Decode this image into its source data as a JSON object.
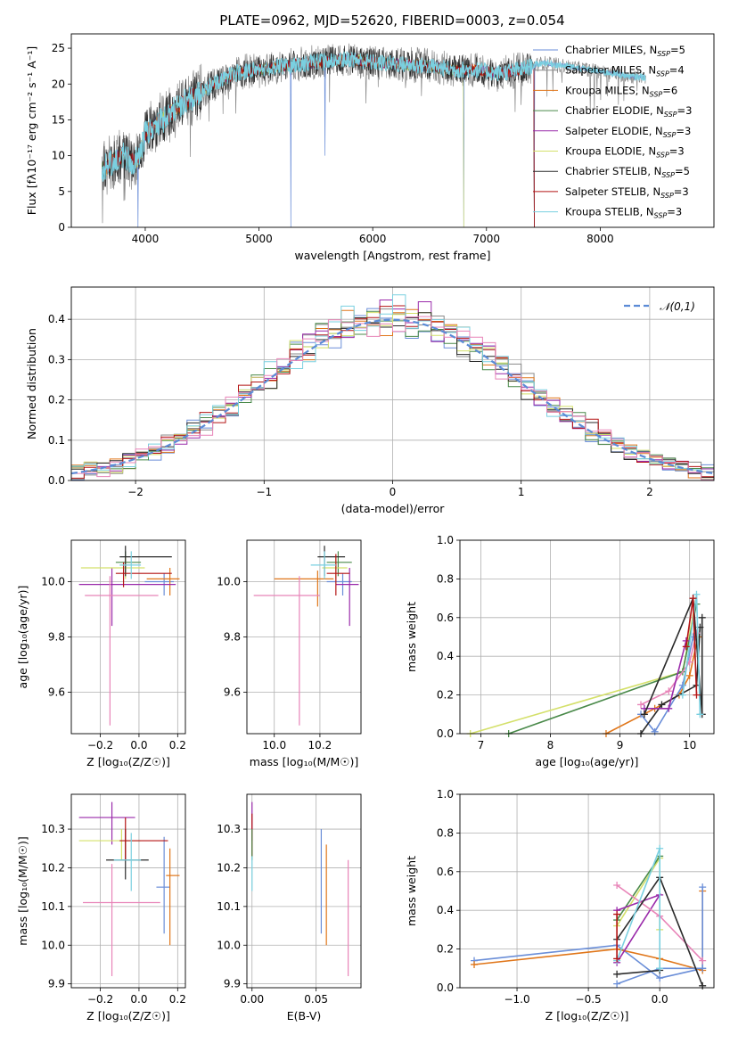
{
  "title": "PLATE=0962, MJD=52620, FIBERID=0003, z=0.054",
  "colors": {
    "Chabrier MILES": "#6a8ed8",
    "Salpeter MILES": "#8a8a8a",
    "Kroupa MILES": "#e0761a",
    "Chabrier ELODIE": "#4a8a4a",
    "Salpeter ELODIE": "#9a2aaa",
    "Kroupa ELODIE": "#d4e06a",
    "Chabrier STELIB": "#2a2a2a",
    "Salpeter STELIB": "#b41414",
    "Kroupa STELIB": "#7ad0e0",
    "extra_pink": "#e884b8",
    "gaussian": "#5b8bd6",
    "grid": "#b0b0b0"
  },
  "chart_data": [
    {
      "id": "spectrum",
      "type": "line",
      "title": "PLATE=0962, MJD=52620, FIBERID=0003, z=0.054",
      "xlabel": "wavelength [Angstrom, rest frame]",
      "ylabel": "Flux [fλ10⁻¹⁷ erg cm⁻² s⁻¹ A⁻¹]",
      "xlim": [
        3350,
        9000
      ],
      "ylim": [
        0,
        27
      ],
      "xticks": [
        "4000",
        "5000",
        "6000",
        "7000",
        "8000"
      ],
      "yticks": [
        "0",
        "5",
        "10",
        "15",
        "20",
        "25"
      ],
      "grid": false,
      "legend_position": "right",
      "legend": [
        "Chabrier MILES, N_SSP=5",
        "Salpeter MILES, N_SSP=4",
        "Kroupa MILES, N_SSP=6",
        "Chabrier ELODIE, N_SSP=3",
        "Salpeter ELODIE, N_SSP=3",
        "Kroupa ELODIE, N_SSP=3",
        "Chabrier STELIB, N_SSP=5",
        "Salpeter STELIB, N_SSP=3",
        "Kroupa STELIB, N_SSP=3"
      ],
      "continuum": [
        [
          3620,
          8
        ],
        [
          3700,
          9
        ],
        [
          3800,
          10
        ],
        [
          3900,
          9
        ],
        [
          3950,
          10
        ],
        [
          4000,
          13
        ],
        [
          4100,
          14.5
        ],
        [
          4200,
          15.5
        ],
        [
          4300,
          17
        ],
        [
          4400,
          18
        ],
        [
          4600,
          20
        ],
        [
          4800,
          21.5
        ],
        [
          5000,
          22
        ],
        [
          5200,
          22.5
        ],
        [
          5500,
          23
        ],
        [
          5800,
          23.5
        ],
        [
          6000,
          23
        ],
        [
          6200,
          22.8
        ],
        [
          6500,
          22.5
        ],
        [
          6700,
          22
        ],
        [
          6900,
          22
        ],
        [
          7100,
          21.5
        ],
        [
          7300,
          22
        ],
        [
          7400,
          22.5
        ],
        [
          7500,
          23
        ],
        [
          7700,
          22.5
        ],
        [
          7900,
          22
        ],
        [
          8100,
          21.5
        ],
        [
          8300,
          21
        ],
        [
          8400,
          21
        ]
      ],
      "dips": [
        [
          3935,
          0
        ],
        [
          5280,
          0
        ],
        [
          5580,
          10
        ],
        [
          6800,
          0
        ],
        [
          7420,
          0
        ]
      ]
    },
    {
      "id": "residuals",
      "type": "histogram",
      "xlabel": "(data-model)/error",
      "ylabel": "Normed distribution",
      "xlim": [
        -2.5,
        2.5
      ],
      "ylim": [
        0,
        0.48
      ],
      "xticks": [
        "−2",
        "−1",
        "0",
        "1",
        "2"
      ],
      "yticks": [
        "0.0",
        "0.1",
        "0.2",
        "0.3",
        "0.4"
      ],
      "grid": true,
      "legend": [
        "𝒩(0,1)"
      ],
      "legend_position": "top-right",
      "bin_width": 0.1
    },
    {
      "id": "age_vs_Z",
      "type": "errorbar",
      "xlabel": "Z [log₁₀(Z/Z☉)]",
      "ylabel": "age  [log₁₀(age/yr)]",
      "xlim": [
        -0.35,
        0.24
      ],
      "ylim": [
        9.45,
        10.15
      ],
      "xticks": [
        "−0.2",
        "0.0",
        "0.2"
      ],
      "yticks": [
        "9.6",
        "9.8",
        "10.0"
      ],
      "points": [
        {
          "c": "Chabrier MILES",
          "x": 0.13,
          "xlo": 0.1,
          "xhi": 0.05,
          "y": 10.0,
          "ylo": 0.05,
          "yhi": 0.03
        },
        {
          "c": "Kroupa MILES",
          "x": 0.16,
          "xlo": 0.12,
          "xhi": 0.05,
          "y": 10.01,
          "ylo": 0.06,
          "yhi": 0.04
        },
        {
          "c": "Chabrier ELODIE",
          "x": -0.07,
          "xlo": 0.05,
          "xhi": 0.08,
          "y": 10.07,
          "ylo": 0.05,
          "yhi": 0.04
        },
        {
          "c": "Salpeter ELODIE",
          "x": -0.14,
          "xlo": 0.17,
          "xhi": 0.33,
          "y": 9.99,
          "ylo": 0.15,
          "yhi": 0.06
        },
        {
          "c": "Kroupa ELODIE",
          "x": -0.07,
          "xlo": 0.23,
          "xhi": 0.1,
          "y": 10.05,
          "ylo": 0.04,
          "yhi": 0.04
        },
        {
          "c": "Chabrier STELIB",
          "x": -0.07,
          "xlo": 0.03,
          "xhi": 0.24,
          "y": 10.09,
          "ylo": 0.07,
          "yhi": 0.04
        },
        {
          "c": "Salpeter STELIB",
          "x": -0.08,
          "xlo": 0.04,
          "xhi": 0.25,
          "y": 10.03,
          "ylo": 0.05,
          "yhi": 0.04
        },
        {
          "c": "Kroupa STELIB",
          "x": -0.04,
          "xlo": 0.06,
          "xhi": 0.05,
          "y": 10.06,
          "ylo": 0.05,
          "yhi": 0.05
        },
        {
          "c": "extra_pink",
          "x": -0.15,
          "xlo": 0.13,
          "xhi": 0.25,
          "y": 9.95,
          "ylo": 0.47,
          "yhi": 0.07
        }
      ]
    },
    {
      "id": "age_vs_mass",
      "type": "errorbar",
      "xlabel": "mass [log₁₀(M/M☉)]",
      "ylabel": "",
      "xlim": [
        9.88,
        10.38
      ],
      "ylim": [
        9.45,
        10.15
      ],
      "xticks": [
        "10.0",
        "10.2"
      ],
      "yticks": [
        "9.6",
        "9.8",
        "10.0"
      ],
      "points": [
        {
          "c": "Chabrier MILES",
          "x": 10.3,
          "xlo": 0.07,
          "xhi": 0.04,
          "y": 10.0,
          "ylo": 0.05,
          "yhi": 0.03
        },
        {
          "c": "Kroupa MILES",
          "x": 10.19,
          "xlo": 0.19,
          "xhi": 0.07,
          "y": 10.01,
          "ylo": 0.1,
          "yhi": 0.03
        },
        {
          "c": "Chabrier ELODIE",
          "x": 10.28,
          "xlo": 0.05,
          "xhi": 0.06,
          "y": 10.07,
          "ylo": 0.05,
          "yhi": 0.04
        },
        {
          "c": "Salpeter ELODIE",
          "x": 10.33,
          "xlo": 0.06,
          "xhi": 0.04,
          "y": 9.99,
          "ylo": 0.15,
          "yhi": 0.06
        },
        {
          "c": "Kroupa ELODIE",
          "x": 10.27,
          "xlo": 0.06,
          "xhi": 0.05,
          "y": 10.05,
          "ylo": 0.04,
          "yhi": 0.04
        },
        {
          "c": "Chabrier STELIB",
          "x": 10.22,
          "xlo": 0.03,
          "xhi": 0.09,
          "y": 10.09,
          "ylo": 0.07,
          "yhi": 0.04
        },
        {
          "c": "Salpeter STELIB",
          "x": 10.27,
          "xlo": 0.04,
          "xhi": 0.06,
          "y": 10.03,
          "ylo": 0.08,
          "yhi": 0.07
        },
        {
          "c": "Kroupa STELIB",
          "x": 10.22,
          "xlo": 0.06,
          "xhi": 0.05,
          "y": 10.06,
          "ylo": 0.05,
          "yhi": 0.05
        },
        {
          "c": "extra_pink",
          "x": 10.11,
          "xlo": 0.2,
          "xhi": 0.09,
          "y": 9.95,
          "ylo": 0.47,
          "yhi": 0.07
        }
      ]
    },
    {
      "id": "weight_vs_age",
      "type": "line",
      "xlabel": "age  [log₁₀(age/yr)]",
      "ylabel": "mass weight",
      "xlim": [
        6.7,
        10.35
      ],
      "ylim": [
        0,
        1.0
      ],
      "xticks": [
        "7",
        "8",
        "9",
        "10"
      ],
      "yticks": [
        "0.0",
        "0.2",
        "0.4",
        "0.6",
        "0.8",
        "1.0"
      ],
      "grid": true,
      "series": [
        {
          "c": "Kroupa ELODIE",
          "x": [
            6.85,
            9.9,
            10.08
          ],
          "y": [
            0.0,
            0.32,
            0.67
          ]
        },
        {
          "c": "Chabrier ELODIE",
          "x": [
            7.4,
            9.9,
            10.1
          ],
          "y": [
            0.0,
            0.32,
            0.67
          ]
        },
        {
          "c": "Kroupa MILES",
          "x": [
            8.8,
            9.5,
            9.85,
            10.0,
            10.12
          ],
          "y": [
            0.0,
            0.13,
            0.2,
            0.3,
            0.5
          ]
        },
        {
          "c": "Chabrier MILES",
          "x": [
            9.3,
            9.5,
            9.9,
            10.05
          ],
          "y": [
            0.1,
            0.01,
            0.25,
            0.5
          ]
        },
        {
          "c": "Chabrier STELIB",
          "x": [
            9.3,
            9.6,
            10.1,
            10.15
          ],
          "y": [
            0.0,
            0.15,
            0.25,
            0.55
          ]
        },
        {
          "c": "extra_pink",
          "x": [
            9.3,
            9.7,
            10.0,
            10.1
          ],
          "y": [
            0.15,
            0.22,
            0.37,
            0.52
          ]
        },
        {
          "c": "Salpeter ELODIE",
          "x": [
            9.35,
            9.7,
            9.95
          ],
          "y": [
            0.13,
            0.13,
            0.48
          ]
        },
        {
          "c": "Chabrier STELIB",
          "x": [
            9.35,
            10.05,
            10.18,
            10.18
          ],
          "y": [
            0.1,
            0.7,
            0.1,
            0.6
          ]
        },
        {
          "c": "Kroupa STELIB",
          "x": [
            9.9,
            10.1,
            10.15
          ],
          "y": [
            0.2,
            0.72,
            0.1
          ]
        },
        {
          "c": "Salpeter STELIB",
          "x": [
            9.95,
            10.05,
            10.1
          ],
          "y": [
            0.45,
            0.7,
            0.2
          ]
        }
      ]
    },
    {
      "id": "mass_vs_Z",
      "type": "errorbar",
      "xlabel": "Z [log₁₀(Z/Z☉)]",
      "ylabel": "mass [log₁₀(M/M☉)]",
      "xlim": [
        -0.35,
        0.24
      ],
      "ylim": [
        9.89,
        10.39
      ],
      "xticks": [
        "−0.2",
        "0.0",
        "0.2"
      ],
      "yticks": [
        "9.9",
        "10.0",
        "10.1",
        "10.2",
        "10.3"
      ],
      "points": [
        {
          "c": "Chabrier MILES",
          "x": 0.13,
          "xlo": 0.04,
          "xhi": 0.03,
          "y": 10.15,
          "ylo": 0.12,
          "yhi": 0.13
        },
        {
          "c": "Kroupa MILES",
          "x": 0.16,
          "xlo": 0.02,
          "xhi": 0.05,
          "y": 10.18,
          "ylo": 0.18,
          "yhi": 0.07
        },
        {
          "c": "Salpeter ELODIE",
          "x": -0.14,
          "xlo": 0.17,
          "xhi": 0.12,
          "y": 10.33,
          "ylo": 0.07,
          "yhi": 0.04
        },
        {
          "c": "Kroupa ELODIE",
          "x": -0.09,
          "xlo": 0.22,
          "xhi": 0.1,
          "y": 10.27,
          "ylo": 0.05,
          "yhi": 0.03
        },
        {
          "c": "Chabrier STELIB",
          "x": -0.07,
          "xlo": 0.1,
          "xhi": 0.12,
          "y": 10.22,
          "ylo": 0.05,
          "yhi": 0.08
        },
        {
          "c": "Salpeter STELIB",
          "x": -0.07,
          "xlo": 0.03,
          "xhi": 0.22,
          "y": 10.27,
          "ylo": 0.05,
          "yhi": 0.06
        },
        {
          "c": "Kroupa STELIB",
          "x": -0.04,
          "xlo": 0.09,
          "xhi": 0.05,
          "y": 10.22,
          "ylo": 0.08,
          "yhi": 0.07
        },
        {
          "c": "extra_pink",
          "x": -0.14,
          "xlo": 0.15,
          "xhi": 0.25,
          "y": 10.11,
          "ylo": 0.19,
          "yhi": 0.1
        }
      ]
    },
    {
      "id": "mass_vs_ebv",
      "type": "errorbar",
      "xlabel": "E(B-V)",
      "ylabel": "",
      "xlim": [
        -0.004,
        0.085
      ],
      "ylim": [
        9.89,
        10.39
      ],
      "xticks": [
        "0.00",
        "0.05"
      ],
      "yticks": [
        "9.9",
        "10.0",
        "10.1",
        "10.2",
        "10.3"
      ],
      "points": [
        {
          "c": "Salpeter ELODIE",
          "x": 0.0,
          "y": 10.32,
          "ylo": 0.05,
          "yhi": 0.05
        },
        {
          "c": "Salpeter STELIB",
          "x": 0.0,
          "y": 10.28,
          "ylo": 0.05,
          "yhi": 0.06
        },
        {
          "c": "Chabrier ELODIE",
          "x": 0.0,
          "y": 10.26,
          "ylo": 0.04,
          "yhi": 0.04
        },
        {
          "c": "Kroupa STELIB",
          "x": 0.0,
          "y": 10.19,
          "ylo": 0.05,
          "yhi": 0.04
        },
        {
          "c": "Chabrier MILES",
          "x": 0.054,
          "y": 10.17,
          "ylo": 0.14,
          "yhi": 0.13
        },
        {
          "c": "Kroupa MILES",
          "x": 0.058,
          "y": 10.13,
          "ylo": 0.13,
          "yhi": 0.13
        },
        {
          "c": "extra_pink",
          "x": 0.075,
          "y": 10.07,
          "ylo": 0.15,
          "yhi": 0.15
        }
      ]
    },
    {
      "id": "weight_vs_Z",
      "type": "line",
      "xlabel": "Z [log₁₀(Z/Z☉)]",
      "ylabel": "mass weight",
      "xlim": [
        -1.4,
        0.38
      ],
      "ylim": [
        0,
        1.0
      ],
      "xticks": [
        "−1.0",
        "−0.5",
        "0.0"
      ],
      "yticks": [
        "0.0",
        "0.2",
        "0.4",
        "0.6",
        "0.8",
        "1.0"
      ],
      "grid": true,
      "series": [
        {
          "c": "Chabrier MILES",
          "x": [
            -1.3,
            -0.3,
            0.0,
            0.3
          ],
          "y": [
            0.14,
            0.22,
            0.05,
            0.1
          ]
        },
        {
          "c": "Kroupa MILES",
          "x": [
            -1.3,
            -0.3,
            0.0,
            0.3,
            0.3
          ],
          "y": [
            0.12,
            0.2,
            0.15,
            0.09,
            0.5
          ]
        },
        {
          "c": "Chabrier MILES",
          "x": [
            -0.3,
            0.0,
            0.3,
            0.3
          ],
          "y": [
            0.02,
            0.1,
            0.1,
            0.52
          ]
        },
        {
          "c": "Kroupa ELODIE",
          "x": [
            -0.3,
            0.0,
            0.0
          ],
          "y": [
            0.32,
            0.67,
            0.3
          ]
        },
        {
          "c": "Chabrier ELODIE",
          "x": [
            -0.3,
            0.0
          ],
          "y": [
            0.35,
            0.68
          ]
        },
        {
          "c": "Salpeter ELODIE",
          "x": [
            -0.3,
            0.0,
            -0.3
          ],
          "y": [
            0.13,
            0.48,
            0.4
          ]
        },
        {
          "c": "extra_pink",
          "x": [
            -0.3,
            0.0,
            0.3
          ],
          "y": [
            0.53,
            0.37,
            0.14
          ]
        },
        {
          "c": "Chabrier STELIB",
          "x": [
            -0.3,
            0.0,
            0.3
          ],
          "y": [
            0.25,
            0.57,
            0.01
          ]
        },
        {
          "c": "Chabrier STELIB",
          "x": [
            -0.3,
            0.0
          ],
          "y": [
            0.07,
            0.09
          ]
        },
        {
          "c": "Kroupa STELIB",
          "x": [
            -0.3,
            0.0,
            0.0
          ],
          "y": [
            0.14,
            0.72,
            0.1
          ]
        },
        {
          "c": "Salpeter STELIB",
          "x": [
            -0.3,
            -0.3
          ],
          "y": [
            0.15,
            0.38
          ]
        }
      ]
    }
  ]
}
